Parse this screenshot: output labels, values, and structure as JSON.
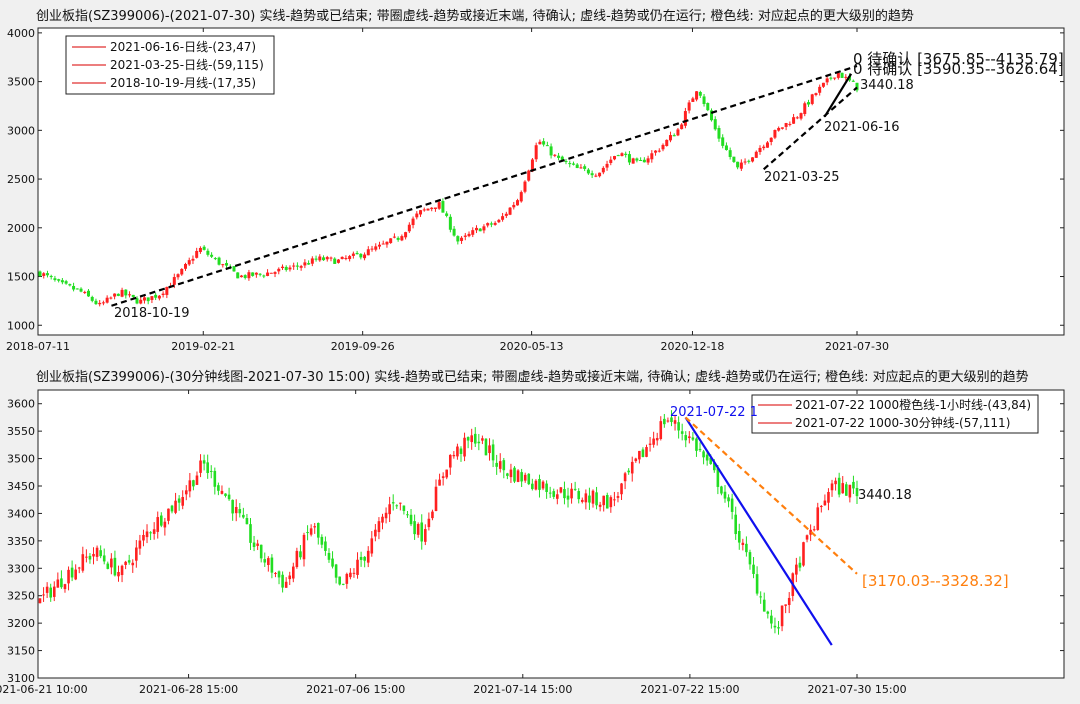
{
  "top": {
    "title": "创业板指(SZ399006)-(2021-07-30)  实线-趋势或已结束;  带圈虚线-趋势或接近末端,  待确认;  虚线-趋势或仍在运行;  橙色线: 对应起点的更大级别的趋势",
    "legend": [
      "2021-06-16-日线-(23,47)",
      "2021-03-25-日线-(59,115)",
      "2018-10-19-月线-(17,35)"
    ],
    "annotations": {
      "low_2018": "2018-10-19",
      "low_2021_03": "2021-03-25",
      "low_2021_06": "2021-06-16",
      "last_price": "3440.18",
      "pending_1": "0  待确认 [3675.85--4135.79]",
      "pending_2": "0  待确认 [3590.35--3626.64]"
    }
  },
  "bottom": {
    "title": "创业板指(SZ399006)-(30分钟线图-2021-07-30 15:00)  实线-趋势或已结束;  带圈虚线-趋势或接近末端,  待确认;  虚线-趋势或仍在运行;  橙色线: 对应起点的更大级别的趋势",
    "legend": [
      "2021-07-22 1000橙色线-1小时线-(43,84)",
      "2021-07-22 1000-30分钟线-(57,111)"
    ],
    "annotations": {
      "start_label": "2021-07-22 1",
      "last_price": "3440.18",
      "target_range": "[3170.03--3328.32]"
    }
  },
  "colors": {
    "up": "#ff2020",
    "down": "#22dd22",
    "dashed": "#000000",
    "blue": "#1010ee",
    "orange": "#ff7f0e",
    "bg": "#f0f0f0"
  },
  "chart_data": [
    {
      "type": "line",
      "name": "daily-candles",
      "title": "创业板指(SZ399006)-(2021-07-30)",
      "x_ticks": [
        "2018-07-11",
        "2019-02-21",
        "2019-09-26",
        "2020-05-13",
        "2020-12-18",
        "2021-07-30"
      ],
      "ylim": [
        900,
        4050
      ],
      "y_ticks": [
        1000,
        1500,
        2000,
        2500,
        3000,
        3500,
        4000
      ],
      "x": [
        "2018-07-11",
        "2018-08-15",
        "2018-09-20",
        "2018-10-19",
        "2018-11-20",
        "2018-12-20",
        "2019-01-20",
        "2019-02-21",
        "2019-03-20",
        "2019-04-10",
        "2019-05-10",
        "2019-06-10",
        "2019-07-10",
        "2019-08-10",
        "2019-09-26",
        "2019-10-30",
        "2019-11-30",
        "2019-12-31",
        "2020-01-20",
        "2020-02-10",
        "2020-02-24",
        "2020-03-23",
        "2020-04-13",
        "2020-05-13",
        "2020-06-10",
        "2020-07-10",
        "2020-07-30",
        "2020-08-20",
        "2020-09-20",
        "2020-10-20",
        "2020-11-20",
        "2020-12-18",
        "2021-01-10",
        "2021-02-10",
        "2021-02-25",
        "2021-03-25",
        "2021-04-20",
        "2021-05-20",
        "2021-06-16",
        "2021-07-05",
        "2021-07-22",
        "2021-07-30"
      ],
      "y": [
        1540,
        1420,
        1350,
        1200,
        1340,
        1240,
        1320,
        1520,
        1790,
        1640,
        1500,
        1520,
        1560,
        1610,
        1680,
        1660,
        1720,
        1800,
        1900,
        2150,
        2250,
        1850,
        1990,
        2060,
        2300,
        2900,
        2700,
        2600,
        2560,
        2780,
        2650,
        2800,
        3000,
        3450,
        2950,
        2600,
        2800,
        3000,
        3150,
        3400,
        3600,
        3440
      ]
    },
    {
      "type": "line",
      "name": "trend-lines-daily",
      "series": [
        {
          "from": [
            "2018-10-19",
            1200
          ],
          "to": [
            "2021-07-30",
            3660
          ],
          "style": "dashed"
        },
        {
          "from": [
            "2021-03-25",
            2600
          ],
          "to": [
            "2021-07-30",
            3440
          ],
          "style": "dashed"
        },
        {
          "from": [
            "2021-06-16",
            3140
          ],
          "to": [
            "2021-07-22",
            3580
          ],
          "style": "solid"
        }
      ]
    },
    {
      "type": "line",
      "name": "30min-candles",
      "title": "创业板指(SZ399006)-(30分钟线图-2021-07-30 15:00)",
      "x_ticks": [
        "2021-06-21 10:00",
        "2021-06-28 15:00",
        "2021-07-06 15:00",
        "2021-07-14 15:00",
        "2021-07-22 15:00",
        "2021-07-30 15:00"
      ],
      "ylim": [
        3100,
        3625
      ],
      "y_ticks": [
        3100,
        3150,
        3200,
        3250,
        3300,
        3350,
        3400,
        3450,
        3500,
        3550,
        3600
      ],
      "x": [
        "06-21 10:00",
        "06-22",
        "06-23",
        "06-24",
        "06-25",
        "06-28 15:00",
        "06-29",
        "06-30",
        "07-01",
        "07-02",
        "07-05",
        "07-06 15:00",
        "07-07",
        "07-08",
        "07-09",
        "07-12",
        "07-13",
        "07-14 15:00",
        "07-15",
        "07-16",
        "07-19",
        "07-20",
        "07-21",
        "07-22 10:00",
        "07-22 15:00",
        "07-23",
        "07-26",
        "07-27",
        "07-28",
        "07-29",
        "07-30 15:00"
      ],
      "y": [
        3240,
        3290,
        3330,
        3290,
        3370,
        3420,
        3490,
        3420,
        3330,
        3270,
        3380,
        3260,
        3330,
        3430,
        3360,
        3500,
        3540,
        3480,
        3460,
        3440,
        3430,
        3420,
        3500,
        3575,
        3530,
        3450,
        3310,
        3180,
        3330,
        3450,
        3440
      ]
    },
    {
      "type": "line",
      "name": "trend-lines-30min",
      "series": [
        {
          "from": [
            "2021-07-22 10:00",
            3575
          ],
          "to": [
            "2021-07-29 10:00",
            3160
          ],
          "style": "solid",
          "color": "blue"
        },
        {
          "from": [
            "2021-07-22 10:00",
            3575
          ],
          "to": [
            "2021-07-30 15:00",
            3290
          ],
          "style": "dashed",
          "color": "orange"
        }
      ]
    }
  ]
}
